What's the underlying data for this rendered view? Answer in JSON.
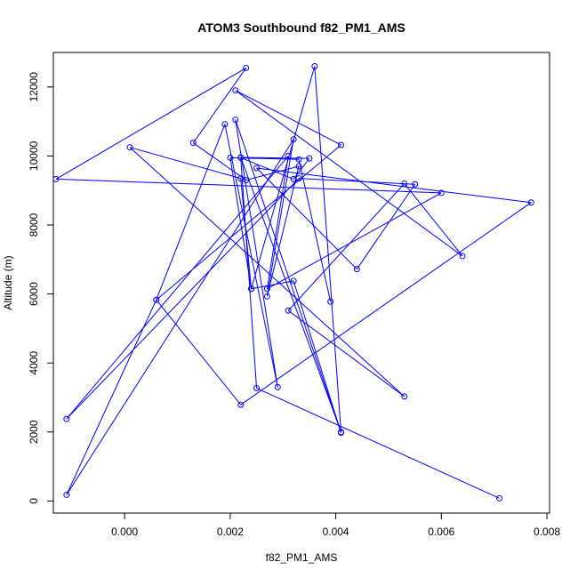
{
  "chart_data": {
    "type": "scatter",
    "title": "ATOM3 Southbound f82_PM1_AMS",
    "xlabel": "f82_PM1_AMS",
    "ylabel": "Altitude (m)",
    "xlim": [
      -0.00135,
      0.00805
    ],
    "ylim": [
      -350,
      13000
    ],
    "x_ticks": [
      0.0,
      0.002,
      0.004,
      0.006,
      0.008
    ],
    "x_tick_labels": [
      "0.000",
      "0.002",
      "0.004",
      "0.006",
      "0.008"
    ],
    "y_ticks": [
      0,
      2000,
      4000,
      6000,
      8000,
      10000,
      12000
    ],
    "y_tick_labels": [
      "0",
      "2000",
      "4000",
      "6000",
      "8000",
      "10000",
      "12000"
    ],
    "grid": false,
    "legend": "none",
    "series": [
      {
        "color": "#0000ff",
        "style": "lines+open-circles",
        "points": [
          {
            "x": 0.0071,
            "y": 80
          },
          {
            "x": 0.0025,
            "y": 3270
          },
          {
            "x": 0.0022,
            "y": 9950
          },
          {
            "x": 0.0032,
            "y": 9330
          },
          {
            "x": 0.0035,
            "y": 9930
          },
          {
            "x": 0.0022,
            "y": 9960
          },
          {
            "x": 0.0041,
            "y": 2000
          },
          {
            "x": 0.0036,
            "y": 12600
          },
          {
            "x": 0.0024,
            "y": 6150
          },
          {
            "x": 0.0022,
            "y": 9350
          },
          {
            "x": 0.0001,
            "y": 10250
          },
          {
            "x": 0.0053,
            "y": 3030
          },
          {
            "x": 0.0031,
            "y": 5520
          },
          {
            "x": 0.0053,
            "y": 9200
          },
          {
            "x": 0.0064,
            "y": 7100
          },
          {
            "x": 0.0021,
            "y": 11900
          },
          {
            "x": 0.0041,
            "y": 10320
          },
          {
            "x": 0.0006,
            "y": 5830
          },
          {
            "x": -0.0011,
            "y": 180
          },
          {
            "x": 0.0032,
            "y": 10480
          },
          {
            "x": 0.0027,
            "y": 5930
          },
          {
            "x": 0.0033,
            "y": 9700
          },
          {
            "x": 0.0023,
            "y": 9300
          },
          {
            "x": 0.0013,
            "y": 10380
          },
          {
            "x": 0.0023,
            "y": 12550
          },
          {
            "x": -0.0013,
            "y": 9330
          },
          {
            "x": 0.006,
            "y": 8930
          },
          {
            "x": 0.0027,
            "y": 6150
          },
          {
            "x": 0.0031,
            "y": 10000
          },
          {
            "x": -0.0011,
            "y": 2380
          },
          {
            "x": 0.0033,
            "y": 9350
          },
          {
            "x": 0.0055,
            "y": 9180
          },
          {
            "x": 0.0044,
            "y": 6720
          },
          {
            "x": 0.0025,
            "y": 9650
          },
          {
            "x": 0.0077,
            "y": 8650
          },
          {
            "x": 0.0022,
            "y": 2790
          },
          {
            "x": 0.0006,
            "y": 5830
          },
          {
            "x": 0.0019,
            "y": 10920
          },
          {
            "x": 0.0029,
            "y": 3300
          },
          {
            "x": 0.0021,
            "y": 11050
          },
          {
            "x": 0.0041,
            "y": 1980
          },
          {
            "x": 0.0032,
            "y": 6380
          },
          {
            "x": 0.0024,
            "y": 6150
          },
          {
            "x": 0.002,
            "y": 9950
          },
          {
            "x": 0.0033,
            "y": 9900
          },
          {
            "x": 0.0039,
            "y": 5780
          }
        ]
      }
    ]
  }
}
